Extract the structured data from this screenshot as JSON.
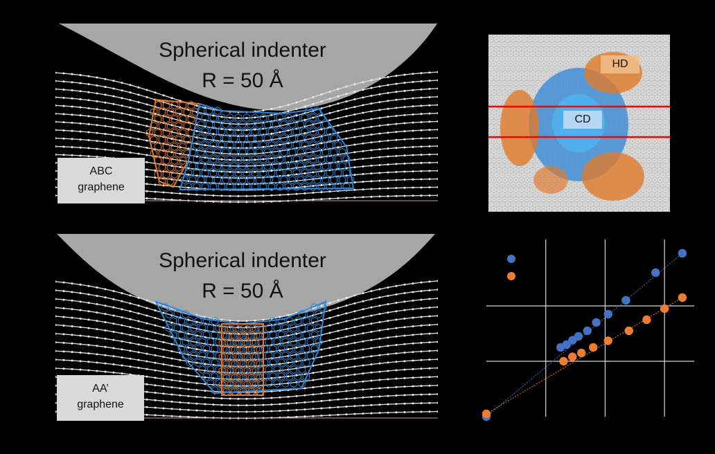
{
  "panels": {
    "abc": {
      "indenter_title": "Spherical indenter",
      "indenter_radius": "R = 50 Å",
      "sample_line1": "ABC",
      "sample_line2": "graphene"
    },
    "aa": {
      "indenter_title": "Spherical indenter",
      "indenter_radius": "R = 50 Å",
      "sample_line1": "AA’",
      "sample_line2": "graphene"
    },
    "topview": {
      "label_hd": "HD",
      "label_cd": "CD"
    }
  },
  "colors": {
    "indenter": "#a6a6a6",
    "chain": "#d9d9d9",
    "blue_domain": "#2f86d6",
    "orange_domain": "#e07a2a",
    "red_line": "#ff0000",
    "series_blue": "#4472c4",
    "series_orange": "#ed7d31"
  },
  "chart_data": {
    "type": "scatter",
    "series": [
      {
        "values": [
          [
            0.0,
            0.0
          ],
          [
            1.25,
            1.25
          ],
          [
            1.35,
            1.3
          ],
          [
            1.45,
            1.38
          ],
          [
            1.55,
            1.45
          ],
          [
            1.7,
            1.55
          ],
          [
            1.85,
            1.7
          ],
          [
            2.05,
            1.85
          ],
          [
            2.35,
            2.1
          ],
          [
            2.85,
            2.6
          ],
          [
            3.3,
            2.95
          ]
        ],
        "color": "#4472c4"
      },
      {
        "values": [
          [
            0.0,
            0.05
          ],
          [
            1.3,
            1.0
          ],
          [
            1.45,
            1.08
          ],
          [
            1.6,
            1.15
          ],
          [
            1.8,
            1.25
          ],
          [
            2.05,
            1.37
          ],
          [
            2.4,
            1.55
          ],
          [
            2.7,
            1.75
          ],
          [
            3.0,
            1.95
          ],
          [
            3.3,
            2.15
          ]
        ],
        "color": "#ed7d31"
      }
    ],
    "xlim": [
      0,
      3.5
    ],
    "ylim": [
      0,
      3.2
    ],
    "grid": true
  }
}
